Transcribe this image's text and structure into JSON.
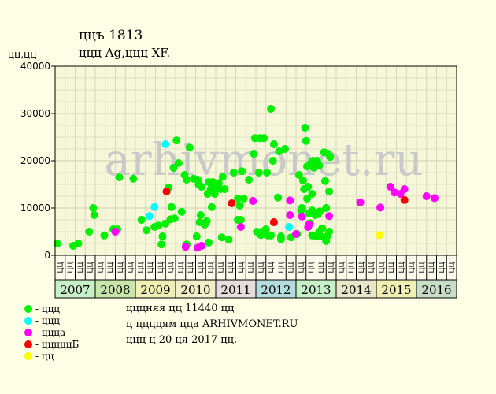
{
  "header": {
    "title": "ццъ 1813",
    "subtitle": "ццц Ag,ццц XF.",
    "unit_label": "цц,цц"
  },
  "watermark": "arhivmonet.ru",
  "legend": [
    {
      "label": "- ццц",
      "color": "#00ee00"
    },
    {
      "label": "- ццц",
      "color": "#00ffff"
    },
    {
      "label": "- ццца",
      "color": "#ff00ff"
    },
    {
      "label": "- цццццБ",
      "color": "#ff0000"
    },
    {
      "label": "- цц",
      "color": "#ffff00"
    }
  ],
  "footer": [
    "цццняя цц 11440 цц",
    "ц ццццям ццa ARHIVMONET.RU",
    "ццц ц 20 ця 2017 цц."
  ],
  "chart_data": {
    "type": "scatter",
    "ylim": [
      0,
      40000
    ],
    "yticks": [
      0,
      10000,
      20000,
      30000,
      40000
    ],
    "quarter_labels": [
      "ЦЦ",
      "ЦЦ",
      "ЦЦ",
      "ЦЦ",
      "ЦЦ",
      "ЦЦ",
      "ЦЦ",
      "ЦЦ",
      "ЦЦ",
      "ЦЦ",
      "ЦЦ",
      "ЦЦ",
      "ЦЦ",
      "ЦЦ",
      "ЦЦ",
      "ЦЦ",
      "ЦЦ",
      "ЦЦ",
      "ЦЦ",
      "ЦЦ",
      "ЦЦ",
      "ЦЦ",
      "ЦЦ",
      "ЦЦ",
      "ЦЦ",
      "ЦЦ",
      "ЦЦ",
      "ЦЦ",
      "ЦЦ",
      "ЦЦ",
      "ЦЦ",
      "ЦЦ",
      "ЦЦ",
      "ЦЦ",
      "ЦЦ",
      "ЦЦ",
      "ЦЦ",
      "ЦЦ",
      "ЦЦ",
      "ЦЦ"
    ],
    "years": [
      {
        "label": "2007",
        "color": "#c8f0c8"
      },
      {
        "label": "2008",
        "color": "#c8e6aa"
      },
      {
        "label": "2009",
        "color": "#f0f0b4"
      },
      {
        "label": "2010",
        "color": "#f0f0c8"
      },
      {
        "label": "2011",
        "color": "#e6dcdc"
      },
      {
        "label": "2012",
        "color": "#b4dcdc"
      },
      {
        "label": "2013",
        "color": "#c8f0c8"
      },
      {
        "label": "2014",
        "color": "#e6e6c8"
      },
      {
        "label": "2015",
        "color": "#f0f0b4"
      },
      {
        "label": "2016",
        "color": "#c8dcc8"
      }
    ],
    "series": [
      {
        "color": "#00ee00",
        "points": [
          [
            0.2,
            2500
          ],
          [
            1.8,
            2000
          ],
          [
            2.3,
            2500
          ],
          [
            3.4,
            5000
          ],
          [
            3.8,
            10000
          ],
          [
            3.9,
            8500
          ],
          [
            4.9,
            4200
          ],
          [
            5.8,
            5500
          ],
          [
            6.2,
            5500
          ],
          [
            6.4,
            16500
          ],
          [
            7.8,
            16200
          ],
          [
            8.6,
            7500
          ],
          [
            9.1,
            5300
          ],
          [
            9.9,
            6000
          ],
          [
            10.3,
            6300
          ],
          [
            10.6,
            2300
          ],
          [
            10.7,
            4000
          ],
          [
            11.0,
            6700
          ],
          [
            11.3,
            14300
          ],
          [
            11.5,
            7600
          ],
          [
            11.6,
            10200
          ],
          [
            11.8,
            18500
          ],
          [
            11.9,
            7800
          ],
          [
            12.1,
            24300
          ],
          [
            12.3,
            19500
          ],
          [
            12.6,
            9200
          ],
          [
            12.9,
            17000
          ],
          [
            13.1,
            16000
          ],
          [
            13.1,
            2300
          ],
          [
            13.4,
            22800
          ],
          [
            13.8,
            16200
          ],
          [
            14.1,
            4000
          ],
          [
            14.2,
            16000
          ],
          [
            14.3,
            15000
          ],
          [
            14.4,
            7000
          ],
          [
            14.5,
            8500
          ],
          [
            14.6,
            14500
          ],
          [
            14.9,
            6500
          ],
          [
            15.1,
            7200
          ],
          [
            15.2,
            13000
          ],
          [
            15.3,
            15500
          ],
          [
            15.3,
            2700
          ],
          [
            15.5,
            14000
          ],
          [
            15.6,
            10200
          ],
          [
            15.7,
            15500
          ],
          [
            15.9,
            13000
          ],
          [
            16.0,
            14500
          ],
          [
            16.3,
            15300
          ],
          [
            16.5,
            14000
          ],
          [
            16.6,
            3800
          ],
          [
            16.7,
            16600
          ],
          [
            16.9,
            14000
          ],
          [
            17.3,
            3300
          ],
          [
            17.8,
            17500
          ],
          [
            18.2,
            12000
          ],
          [
            18.2,
            7500
          ],
          [
            18.4,
            10500
          ],
          [
            18.5,
            7500
          ],
          [
            18.6,
            17800
          ],
          [
            18.8,
            12000
          ],
          [
            19.3,
            16000
          ],
          [
            19.8,
            21500
          ],
          [
            19.9,
            24800
          ],
          [
            20.1,
            5000
          ],
          [
            20.3,
            17500
          ],
          [
            20.4,
            24800
          ],
          [
            20.5,
            4300
          ],
          [
            20.6,
            5000
          ],
          [
            20.8,
            24800
          ],
          [
            20.9,
            4500
          ],
          [
            21.0,
            5500
          ],
          [
            21.1,
            17500
          ],
          [
            21.2,
            4200
          ],
          [
            21.5,
            31000
          ],
          [
            21.5,
            4200
          ],
          [
            21.7,
            20000
          ],
          [
            21.8,
            23500
          ],
          [
            22.2,
            12200
          ],
          [
            22.3,
            22000
          ],
          [
            22.5,
            3400
          ],
          [
            22.5,
            4000
          ],
          [
            22.9,
            22500
          ],
          [
            23.5,
            3800
          ],
          [
            24.1,
            4500
          ],
          [
            24.3,
            17000
          ],
          [
            24.5,
            9500
          ],
          [
            24.6,
            10000
          ],
          [
            24.7,
            15800
          ],
          [
            24.8,
            14000
          ],
          [
            24.9,
            27000
          ],
          [
            25.0,
            24200
          ],
          [
            25.1,
            12000
          ],
          [
            25.1,
            18800
          ],
          [
            25.2,
            14500
          ],
          [
            25.3,
            8900
          ],
          [
            25.4,
            6800
          ],
          [
            25.5,
            19500
          ],
          [
            25.6,
            9500
          ],
          [
            25.6,
            13000
          ],
          [
            25.6,
            4200
          ],
          [
            25.7,
            20000
          ],
          [
            25.8,
            18500
          ],
          [
            25.9,
            8500
          ],
          [
            26.0,
            4000
          ],
          [
            26.1,
            20000
          ],
          [
            26.2,
            8700
          ],
          [
            26.3,
            5000
          ],
          [
            26.3,
            19000
          ],
          [
            26.4,
            9300
          ],
          [
            26.5,
            4000
          ],
          [
            26.6,
            5700
          ],
          [
            26.8,
            21800
          ],
          [
            26.9,
            15700
          ],
          [
            27.0,
            10000
          ],
          [
            27.0,
            3000
          ],
          [
            27.1,
            4000
          ],
          [
            27.2,
            21500
          ],
          [
            27.3,
            13500
          ],
          [
            27.3,
            5000
          ],
          [
            27.4,
            20800
          ]
        ]
      },
      {
        "color": "#00ffff",
        "points": [
          [
            9.4,
            8300
          ],
          [
            9.9,
            10200
          ],
          [
            11.0,
            23500
          ],
          [
            23.3,
            6000
          ]
        ]
      },
      {
        "color": "#ff00ff",
        "points": [
          [
            6.0,
            5000
          ],
          [
            13.0,
            1800
          ],
          [
            14.2,
            1600
          ],
          [
            14.6,
            2000
          ],
          [
            18.5,
            6000
          ],
          [
            19.7,
            11500
          ],
          [
            23.4,
            8500
          ],
          [
            23.4,
            11600
          ],
          [
            24.0,
            4500
          ],
          [
            24.6,
            8200
          ],
          [
            25.2,
            6000
          ],
          [
            25.3,
            6500
          ],
          [
            27.3,
            8300
          ],
          [
            30.4,
            11200
          ],
          [
            32.4,
            10100
          ],
          [
            33.4,
            14500
          ],
          [
            33.8,
            13300
          ],
          [
            34.4,
            13000
          ],
          [
            34.8,
            14000
          ],
          [
            37.0,
            12500
          ],
          [
            37.8,
            12100
          ]
        ]
      },
      {
        "color": "#ff0000",
        "points": [
          [
            11.1,
            13500
          ],
          [
            17.6,
            11000
          ],
          [
            21.8,
            7000
          ],
          [
            34.8,
            11700
          ]
        ]
      },
      {
        "color": "#ffff00",
        "points": [
          [
            32.3,
            4300
          ]
        ]
      }
    ]
  }
}
